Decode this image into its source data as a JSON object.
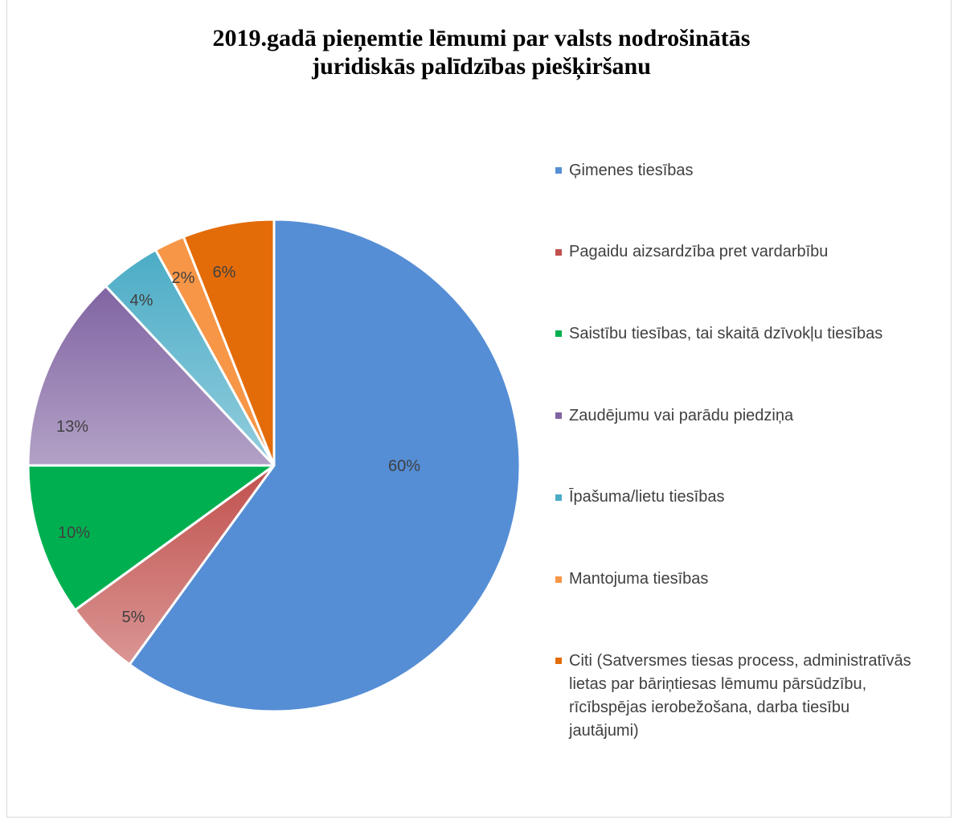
{
  "chart_data": {
    "type": "pie",
    "title": "2019.gadā pieņemtie lēmumi par valsts nodrošinātās juridiskās palīdzības piešķiršanu",
    "categories": [
      "Ģimenes tiesības",
      "Pagaidu aizsardzība pret vardarbību",
      "Saistību tiesības, tai skaitā dzīvokļu tiesības",
      "Zaudējumu vai parādu piedziņa",
      "Īpašuma/lietu tiesības",
      "Mantojuma tiesības",
      "Citi (Satversmes tiesas process, administratīvās lietas par bāriņtiesas lēmumu pārsūdzību, rīcībspējas ierobežošana, darba tiesību jautājumi)"
    ],
    "values": [
      60,
      5,
      10,
      13,
      4,
      2,
      6
    ],
    "data_labels": [
      "60%",
      "5%",
      "10%",
      "13%",
      "4%",
      "2%",
      "6%"
    ],
    "legend_position": "right",
    "colors": [
      "#558ED5",
      "#C0504D",
      "#00B050",
      "#8064A2",
      "#4BACC6",
      "#F79646",
      "#E36C09"
    ],
    "fill_gradients": [
      [
        "#558ED5",
        "#558ED5"
      ],
      [
        "#C0504D",
        "#DA9694"
      ],
      [
        "#00B050",
        "#00B050"
      ],
      [
        "#8064A2",
        "#B3A2C7"
      ],
      [
        "#4BACC6",
        "#93CDDD"
      ],
      [
        "#F79646",
        "#F79646"
      ],
      [
        "#E36C09",
        "#E36C09"
      ]
    ]
  }
}
